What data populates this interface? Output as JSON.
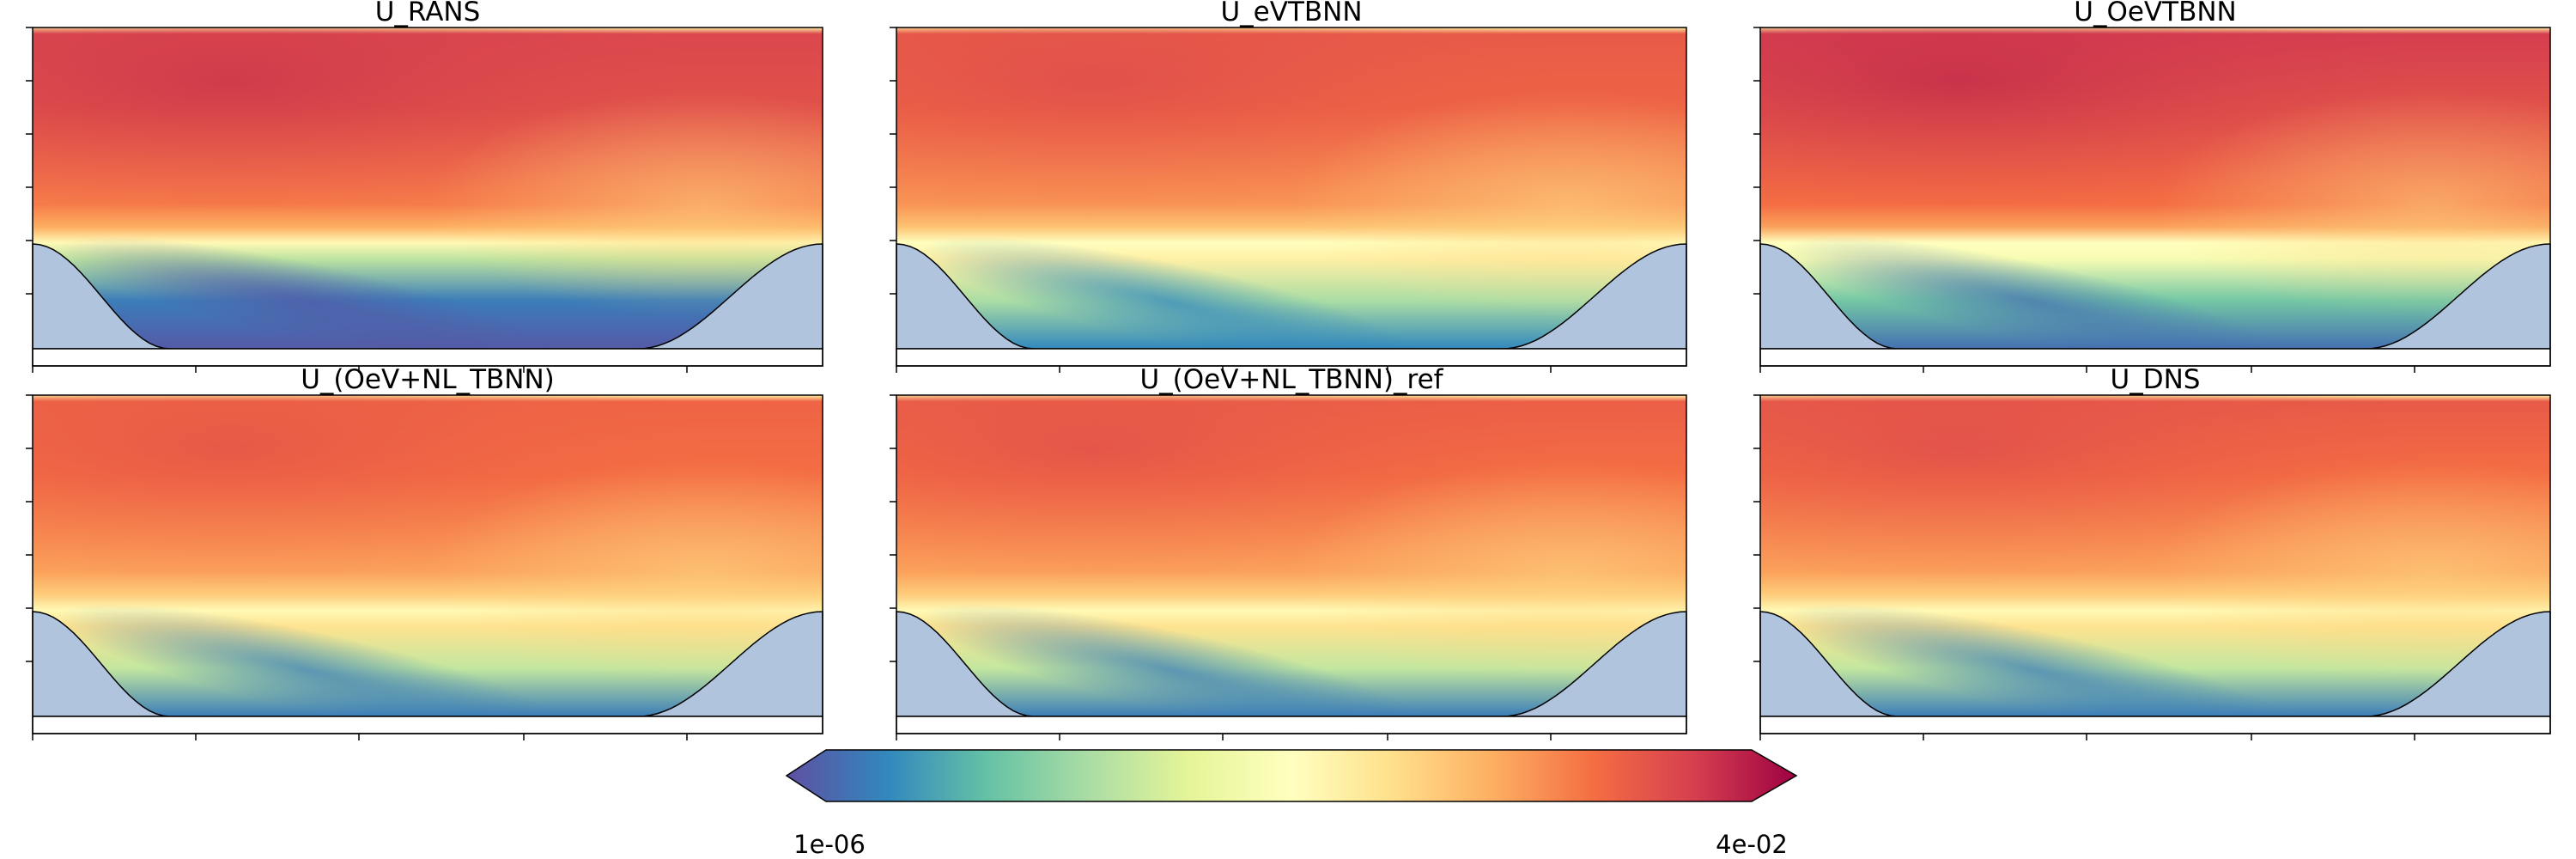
{
  "figure": {
    "colormap": "Spectral_r",
    "colormap_stops": [
      "#5e4fa2",
      "#3288bd",
      "#66c2a5",
      "#abdda4",
      "#e6f598",
      "#ffffbf",
      "#fee08b",
      "#fdae61",
      "#f46d43",
      "#d53e4f",
      "#9e0142"
    ],
    "wall_fill_color": "#b0c4de"
  },
  "colorbar": {
    "min_label": "1e-06",
    "max_label": "4e-02",
    "extend": "both"
  },
  "chart_data": [
    {
      "type": "heatmap",
      "title": "U_RANS",
      "variant": "rans"
    },
    {
      "type": "heatmap",
      "title": "U_eVTBNN",
      "variant": "evtbnn"
    },
    {
      "type": "heatmap",
      "title": "U_OeVTBNN",
      "variant": "oevtbnn"
    },
    {
      "type": "heatmap",
      "title": "U_(OeV+NL_TBNN)",
      "variant": "oevnl"
    },
    {
      "type": "heatmap",
      "title": "U_(OeV+NL_TBNN)_ref",
      "variant": "oevnl_ref"
    },
    {
      "type": "heatmap",
      "title": "U_DNS",
      "variant": "dns"
    }
  ]
}
